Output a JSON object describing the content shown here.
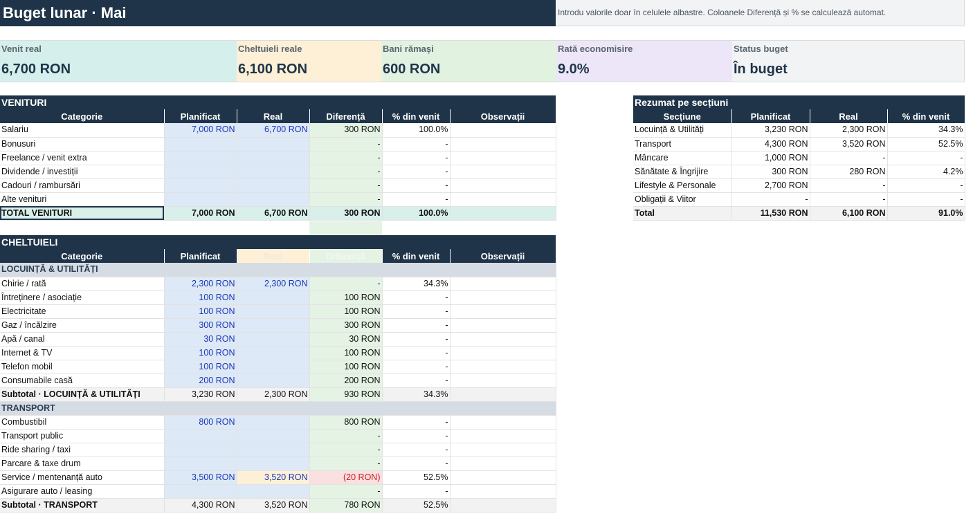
{
  "header": {
    "title": "Buget lunar · Mai",
    "note": "Introdu valorile doar în celulele albastre. Coloanele Diferență și % se calculează automat."
  },
  "kpis": [
    {
      "label": "Venit real",
      "value": "6,700 RON",
      "bg": "#d5efec"
    },
    {
      "label": "Cheltuieli reale",
      "value": "6,100 RON",
      "bg": "#fdf0d7"
    },
    {
      "label": "Bani rămași",
      "value": "600 RON",
      "bg": "#e2f2e1"
    },
    {
      "label": "Rată economisire",
      "value": "9.0%",
      "bg": "#ece6f8"
    },
    {
      "label": "Status buget",
      "value": "În buget",
      "bg": "#f2f3f4"
    }
  ],
  "venituri": {
    "title": "VENITURI",
    "headers": [
      "Categorie",
      "Planificat",
      "Real",
      "Diferență",
      "% din venit",
      "Observații"
    ],
    "rows": [
      {
        "cat": "Salariu",
        "plan": "7,000 RON",
        "real": "6,700 RON",
        "diff": "300 RON",
        "pct": "100.0%"
      },
      {
        "cat": "Bonusuri",
        "plan": "",
        "real": "",
        "diff": "-",
        "pct": "-"
      },
      {
        "cat": "Freelance / venit extra",
        "plan": "",
        "real": "",
        "diff": "-",
        "pct": "-"
      },
      {
        "cat": "Dividende / investiții",
        "plan": "",
        "real": "",
        "diff": "-",
        "pct": "-"
      },
      {
        "cat": "Cadouri / rambursări",
        "plan": "",
        "real": "",
        "diff": "-",
        "pct": "-"
      },
      {
        "cat": "Alte venituri",
        "plan": "",
        "real": "",
        "diff": "-",
        "pct": "-"
      }
    ],
    "total": {
      "cat": "TOTAL VENITURI",
      "plan": "7,000 RON",
      "real": "6,700 RON",
      "diff": "300 RON",
      "pct": "100.0%"
    }
  },
  "cheltuieli": {
    "title": "CHELTUIELI",
    "headers": [
      "Categorie",
      "Planificat",
      "Real",
      "Diferență",
      "% din venit",
      "Observații"
    ],
    "groups": [
      {
        "name": "LOCUINȚĂ & UTILITĂȚI",
        "rows": [
          {
            "cat": "Chirie / rată",
            "plan": "2,300 RON",
            "real": "2,300 RON",
            "diff": "-",
            "pct": "34.3%"
          },
          {
            "cat": "Întreținere / asociație",
            "plan": "100 RON",
            "real": "",
            "diff": "100 RON",
            "pct": "-"
          },
          {
            "cat": "Electricitate",
            "plan": "100 RON",
            "real": "",
            "diff": "100 RON",
            "pct": "-"
          },
          {
            "cat": "Gaz / încălzire",
            "plan": "300 RON",
            "real": "",
            "diff": "300 RON",
            "pct": "-"
          },
          {
            "cat": "Apă / canal",
            "plan": "30 RON",
            "real": "",
            "diff": "30 RON",
            "pct": "-"
          },
          {
            "cat": "Internet & TV",
            "plan": "100 RON",
            "real": "",
            "diff": "100 RON",
            "pct": "-"
          },
          {
            "cat": "Telefon mobil",
            "plan": "100 RON",
            "real": "",
            "diff": "100 RON",
            "pct": "-"
          },
          {
            "cat": "Consumabile casă",
            "plan": "200 RON",
            "real": "",
            "diff": "200 RON",
            "pct": "-"
          }
        ],
        "subtotal": {
          "cat": "Subtotal · LOCUINȚĂ & UTILITĂȚI",
          "plan": "3,230 RON",
          "real": "2,300 RON",
          "diff": "930 RON",
          "pct": "34.3%"
        }
      },
      {
        "name": "TRANSPORT",
        "rows": [
          {
            "cat": "Combustibil",
            "plan": "800 RON",
            "real": "",
            "diff": "800 RON",
            "pct": "-"
          },
          {
            "cat": "Transport public",
            "plan": "",
            "real": "",
            "diff": "-",
            "pct": "-"
          },
          {
            "cat": "Ride sharing / taxi",
            "plan": "",
            "real": "",
            "diff": "-",
            "pct": "-"
          },
          {
            "cat": "Parcare & taxe drum",
            "plan": "",
            "real": "",
            "diff": "-",
            "pct": "-"
          },
          {
            "cat": "Service / mentenanță auto",
            "plan": "3,500 RON",
            "real": "3,520 RON",
            "diff": "(20 RON)",
            "pct": "52.5%",
            "neg": true
          },
          {
            "cat": "Asigurare auto / leasing",
            "plan": "",
            "real": "",
            "diff": "-",
            "pct": "-"
          }
        ],
        "subtotal": {
          "cat": "Subtotal · TRANSPORT",
          "plan": "4,300 RON",
          "real": "3,520 RON",
          "diff": "780 RON",
          "pct": "52.5%"
        }
      }
    ]
  },
  "rezumat": {
    "title": "Rezumat pe secțiuni",
    "headers": [
      "Secțiune",
      "Planificat",
      "Real",
      "% din venit"
    ],
    "rows": [
      {
        "sec": "Locuință & Utilități",
        "plan": "3,230 RON",
        "real": "2,300 RON",
        "pct": "34.3%"
      },
      {
        "sec": "Transport",
        "plan": "4,300 RON",
        "real": "3,520 RON",
        "pct": "52.5%"
      },
      {
        "sec": "Mâncare",
        "plan": "1,000 RON",
        "real": "-",
        "pct": "-"
      },
      {
        "sec": "Sănătate & Îngrijire",
        "plan": "300 RON",
        "real": "280 RON",
        "pct": "4.2%"
      },
      {
        "sec": "Lifestyle & Personale",
        "plan": "2,700 RON",
        "real": "-",
        "pct": "-"
      },
      {
        "sec": "Obligații & Viitor",
        "plan": "-",
        "real": "-",
        "pct": "-"
      }
    ],
    "total": {
      "sec": "Total",
      "plan": "11,530 RON",
      "real": "6,100 RON",
      "pct": "91.0%"
    }
  }
}
